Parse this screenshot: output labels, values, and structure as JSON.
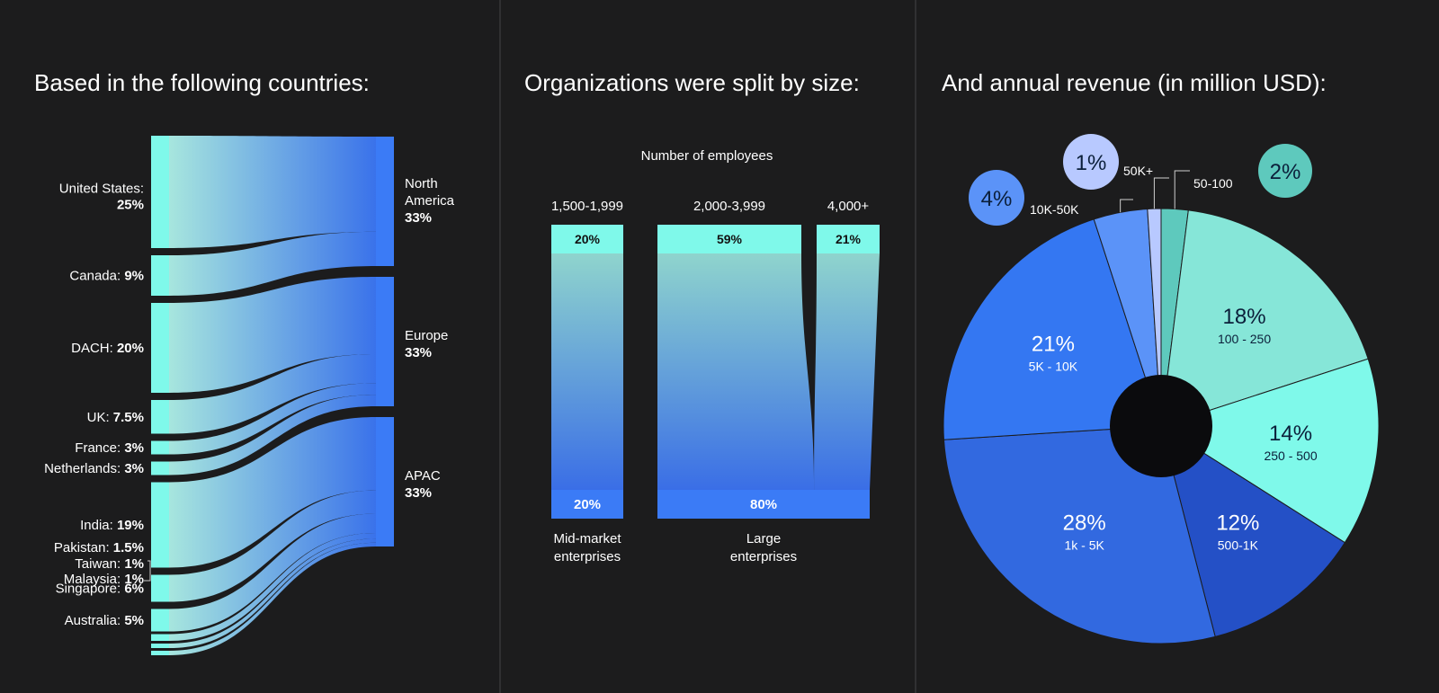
{
  "colors": {
    "background": "#1c1c1d",
    "divider": "#444446",
    "mint": "#7ff9ea",
    "blue": "#3b7bf6",
    "dark_blue": "#2a56c8"
  },
  "panels": {
    "countries_title": "Based in the following countries:",
    "size_title": "Organizations were split by size:",
    "revenue_title": "And annual revenue (in million USD):"
  },
  "chart_data": [
    {
      "type": "sankey",
      "title": "Based in the following countries:",
      "sources": [
        {
          "name": "United States:",
          "value_label": "25%",
          "value": 25,
          "target": "North America"
        },
        {
          "name": "Canada:",
          "value_label": "9%",
          "value": 9,
          "target": "North America"
        },
        {
          "name": "DACH:",
          "value_label": "20%",
          "value": 20,
          "target": "Europe"
        },
        {
          "name": "UK:",
          "value_label": "7.5%",
          "value": 7.5,
          "target": "Europe"
        },
        {
          "name": "France:",
          "value_label": "3%",
          "value": 3,
          "target": "Europe"
        },
        {
          "name": "Netherlands:",
          "value_label": "3%",
          "value": 3,
          "target": "Europe"
        },
        {
          "name": "India:",
          "value_label": "19%",
          "value": 19,
          "target": "APAC"
        },
        {
          "name": "Singapore:",
          "value_label": "6%",
          "value": 6,
          "target": "APAC"
        },
        {
          "name": "Australia:",
          "value_label": "5%",
          "value": 5,
          "target": "APAC"
        },
        {
          "name": "Pakistan:",
          "value_label": "1.5%",
          "value": 1.5,
          "target": "APAC"
        },
        {
          "name": "Taiwan:",
          "value_label": "1%",
          "value": 1,
          "target": "APAC"
        },
        {
          "name": "Malaysia:",
          "value_label": "1%",
          "value": 1,
          "target": "APAC"
        }
      ],
      "targets": [
        {
          "name": "North America",
          "name_lines": [
            "North",
            "America"
          ],
          "value_label": "33%",
          "value": 33
        },
        {
          "name": "Europe",
          "name_lines": [
            "Europe"
          ],
          "value_label": "33%",
          "value": 33
        },
        {
          "name": "APAC",
          "name_lines": [
            "APAC"
          ],
          "value_label": "33%",
          "value": 33
        }
      ]
    },
    {
      "type": "sankey",
      "title": "Organizations were split by size:",
      "subtitle": "Number of employees",
      "columns": [
        {
          "label": "1,500-1,999",
          "value": 20,
          "value_label": "20%"
        },
        {
          "label": "2,000-3,999",
          "value": 59,
          "value_label": "59%"
        },
        {
          "label": "4,000+",
          "value": 21,
          "value_label": "21%"
        }
      ],
      "groups": [
        {
          "name": "Mid-market enterprises",
          "name_lines": [
            "Mid-market",
            "enterprises"
          ],
          "value": 20,
          "value_label": "20%",
          "from": [
            "1,500-1,999"
          ]
        },
        {
          "name": "Large enterprises",
          "name_lines": [
            "Large",
            "enterprises"
          ],
          "value": 80,
          "value_label": "80%",
          "from": [
            "2,000-3,999",
            "4,000+"
          ]
        }
      ]
    },
    {
      "type": "pie",
      "title": "And annual revenue (in million USD):",
      "slices": [
        {
          "label": "50-100",
          "value": 2,
          "value_label": "2%",
          "color": "#5ec9bd",
          "callout": true
        },
        {
          "label": "100 - 250",
          "value": 18,
          "value_label": "18%",
          "color": "#86e6d8"
        },
        {
          "label": "250 - 500",
          "value": 14,
          "value_label": "14%",
          "color": "#7ff9ea"
        },
        {
          "label": "500-1K",
          "value": 12,
          "value_label": "12%",
          "color": "#2450c6"
        },
        {
          "label": "1k - 5K",
          "value": 28,
          "value_label": "28%",
          "color": "#3269e0"
        },
        {
          "label": "5K - 10K",
          "value": 21,
          "value_label": "21%",
          "color": "#3477f2"
        },
        {
          "label": "10K-50K",
          "value": 4,
          "value_label": "4%",
          "color": "#5b93f8",
          "callout": true
        },
        {
          "label": "50K+",
          "value": 1,
          "value_label": "1%",
          "color": "#b8c9ff",
          "callout": true
        }
      ]
    }
  ]
}
